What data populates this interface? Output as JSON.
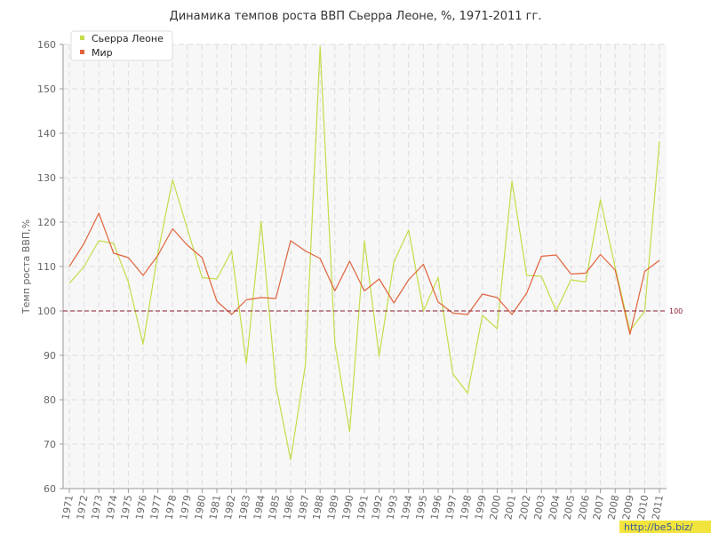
{
  "chart_data": {
    "type": "line",
    "title": "Динамика темпов роста ВВП Сьерра Леоне, %, 1971-2011 гг.",
    "xlabel": "",
    "ylabel": "Темп роста ВВП,%",
    "ylim": [
      60,
      160
    ],
    "yticks": [
      60,
      70,
      80,
      90,
      100,
      110,
      120,
      130,
      140,
      150,
      160
    ],
    "grid": true,
    "legend_position": "top-left",
    "x": [
      "1971",
      "1972",
      "1973",
      "1974",
      "1975",
      "1976",
      "1977",
      "1978",
      "1979",
      "1980",
      "1981",
      "1982",
      "1983",
      "1984",
      "1985",
      "1986",
      "1987",
      "1988",
      "1989",
      "1990",
      "1991",
      "1992",
      "1993",
      "1994",
      "1995",
      "1996",
      "1997",
      "1998",
      "1999",
      "2000",
      "2001",
      "2002",
      "2003",
      "2004",
      "2005",
      "2006",
      "2007",
      "2008",
      "2009",
      "2010",
      "2011"
    ],
    "series": [
      {
        "name": "Сьерра Леоне",
        "color": "#c5dc4a",
        "values": [
          106.2,
          110,
          115.8,
          115.2,
          106.5,
          92.5,
          113,
          129.5,
          118.5,
          107.5,
          107.2,
          113.5,
          88.2,
          120.2,
          83.2,
          66.5,
          87.8,
          159.5,
          92.8,
          72.8,
          115.8,
          89.8,
          111,
          118.2,
          100,
          107.5,
          85.8,
          81.5,
          99,
          96,
          129.2,
          108,
          107.8,
          100,
          107,
          106.5,
          125,
          109.8,
          95.5,
          100,
          138.2
        ]
      },
      {
        "name": "Мир",
        "color": "#e0643c",
        "values": [
          110,
          115.2,
          122,
          113,
          112,
          108,
          112.5,
          118.5,
          114.8,
          112,
          102.2,
          99.2,
          102.5,
          103,
          102.8,
          115.8,
          113.5,
          111.8,
          104.5,
          111.2,
          104.5,
          107.2,
          101.8,
          107,
          110.5,
          102,
          99.5,
          99.2,
          103.8,
          103,
          99.2,
          104,
          112.3,
          112.6,
          108.3,
          108.5,
          112.7,
          109.2,
          94.7,
          108.9,
          111.4
        ]
      }
    ],
    "reference_line": {
      "value": 100,
      "label": "100",
      "color": "#8b1a2f"
    },
    "watermark": "http://be5.biz/"
  }
}
